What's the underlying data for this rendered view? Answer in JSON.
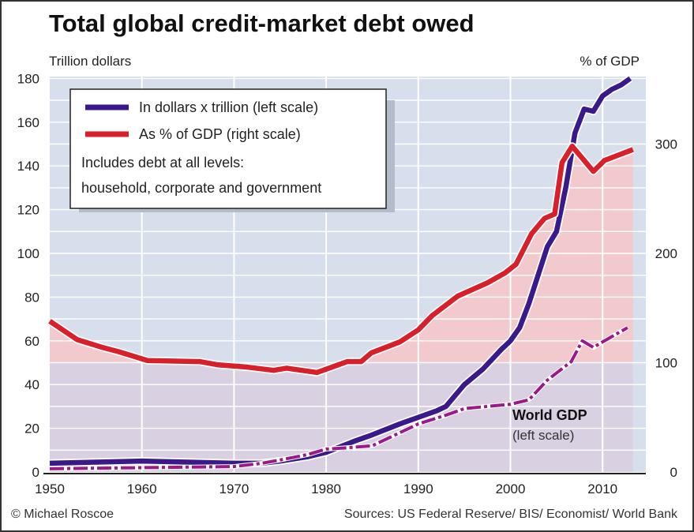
{
  "chart_data": {
    "type": "line",
    "title": "Total global credit-market debt owed",
    "ylabel_left": "Trillion dollars",
    "ylabel_right": "% of GDP",
    "xlim": [
      1950,
      2015
    ],
    "ylim_left": [
      0,
      180
    ],
    "ylim_right": [
      0,
      360
    ],
    "x_ticks": [
      "1950",
      "1960",
      "1970",
      "1980",
      "1990",
      "2000",
      "2010"
    ],
    "y_ticks_left": [
      "0",
      "20",
      "40",
      "60",
      "80",
      "100",
      "120",
      "140",
      "160",
      "180"
    ],
    "y_ticks_right": [
      "0",
      "100",
      "200",
      "300"
    ],
    "grid": true,
    "legend_placement": "top-left",
    "series": [
      {
        "name": "In dollars x trillion (left scale)",
        "axis": "left",
        "color": "#3a1a8a",
        "style": "solid",
        "x": [
          1950,
          1955,
          1960,
          1965,
          1970,
          1973,
          1975,
          1978,
          1980,
          1983,
          1985,
          1988,
          1990,
          1992,
          1993,
          1995,
          1997,
          1999,
          2000,
          2001,
          2002,
          2003,
          2004,
          2005,
          2006,
          2007,
          2008,
          2009,
          2010,
          2011,
          2012,
          2013
        ],
        "values": [
          4,
          4.5,
          5,
          4.5,
          4,
          4,
          5,
          7,
          9,
          14,
          17,
          22,
          25,
          28,
          30,
          40,
          47,
          56,
          60,
          66,
          77,
          90,
          103,
          110,
          130,
          155,
          166,
          165,
          172,
          175,
          177,
          180
        ]
      },
      {
        "name": "As % of GDP (right scale)",
        "axis": "right",
        "color": "#d8202a",
        "style": "solid",
        "x": [
          1950,
          1953,
          1955.7,
          1957.5,
          1960.6,
          1966.3,
          1968.3,
          1971.4,
          1974.3,
          1975.7,
          1979,
          1982.3,
          1983.8,
          1984.9,
          1988,
          1990,
          1991.5,
          1994.3,
          1997.5,
          1999.4,
          2000.6,
          2002.3,
          2003.7,
          2004.8,
          2005.6,
          2006.7,
          2009,
          2010.2,
          2013.3
        ],
        "values": [
          138,
          121,
          114,
          110,
          102,
          101,
          98,
          96,
          93,
          95,
          91,
          101,
          101,
          109,
          119,
          130,
          143,
          161,
          173,
          182,
          190,
          218,
          232,
          236,
          283,
          298,
          275,
          285,
          295
        ]
      },
      {
        "name": "World GDP",
        "axis": "left",
        "color": "#9a1a8a",
        "style": "dash-dot",
        "x": [
          1950,
          1960,
          1970,
          1973,
          1975,
          1978,
          1980,
          1982,
          1985,
          1988,
          1990,
          1993,
          1995,
          2000,
          2002,
          2004,
          2006.6,
          2007.8,
          2009,
          2010,
          2012.7
        ],
        "values": [
          1.5,
          2,
          2.5,
          4,
          5.5,
          8,
          10.5,
          11,
          12,
          18,
          22,
          26,
          29,
          31,
          33,
          42,
          50.5,
          60,
          57,
          59.5,
          66
        ]
      }
    ]
  },
  "legend": {
    "items": [
      {
        "label": "In dollars x trillion (left scale)",
        "color": "#3a1a8a"
      },
      {
        "label": "As % of GDP (right scale)",
        "color": "#d8202a"
      }
    ],
    "note_line1": "Includes debt at all levels:",
    "note_line2": "household, corporate and government"
  },
  "annotation": {
    "title": "World GDP",
    "subtitle": "(left scale)"
  },
  "footer": {
    "credit": "© Michael Roscoe",
    "sources": "Sources: US Federal Reserve/ BIS/ Economist/ World Bank"
  },
  "colors": {
    "plot_bg": "#d6dfeb",
    "lower_band": "#d9d1e2",
    "pct_fill": "#f2cacd"
  }
}
